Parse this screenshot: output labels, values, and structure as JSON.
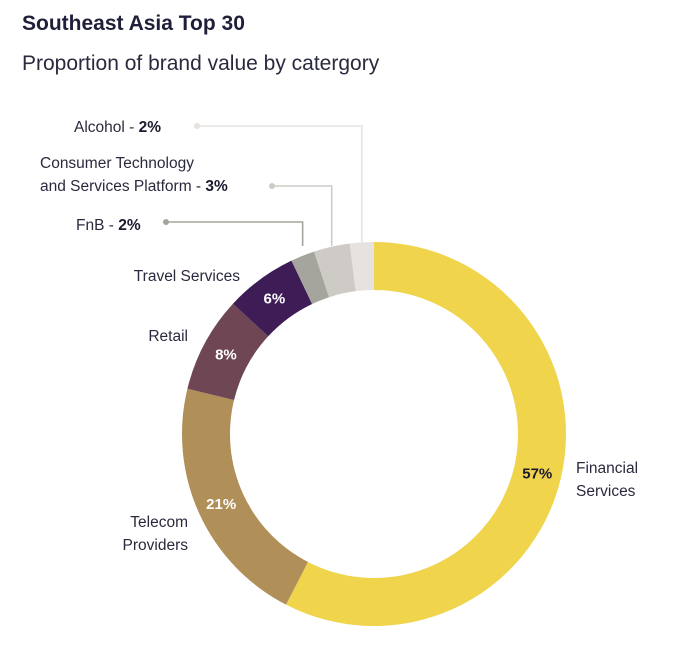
{
  "title": "Southeast Asia Top 30",
  "subtitle": "Proportion of brand value by catergory",
  "chart_data": {
    "type": "pie",
    "donut": true,
    "title": "Southeast Asia Top 30",
    "subtitle": "Proportion of brand value by catergory",
    "slices": [
      {
        "name": "Financial Services",
        "label_lines": [
          "Financial",
          "Services"
        ],
        "value": 57,
        "value_label": "57%",
        "color": "#f0d44c",
        "text_color": "#1a1a2e"
      },
      {
        "name": "Telecom Providers",
        "label_lines": [
          "Telecom",
          "Providers"
        ],
        "value": 21,
        "value_label": "21%",
        "color": "#b08f58",
        "text_color": "#ffffff"
      },
      {
        "name": "Retail",
        "label_lines": [
          "Retail"
        ],
        "value": 8,
        "value_label": "8%",
        "color": "#6e4654",
        "text_color": "#ffffff"
      },
      {
        "name": "Travel Services",
        "label_lines": [
          "Travel Services"
        ],
        "value": 6,
        "value_label": "6%",
        "color": "#3e1d57",
        "text_color": "#ffffff"
      },
      {
        "name": "FnB",
        "label_lines": [
          "FnB - "
        ],
        "value": 2,
        "value_label": "2%",
        "color": "#a6a59d"
      },
      {
        "name": "Consumer Technology and Services Platform",
        "label_lines": [
          "Consumer Technology",
          "and Services Platform - "
        ],
        "value": 3,
        "value_label": "3%",
        "color": "#cecbc6"
      },
      {
        "name": "Alcohol",
        "label_lines": [
          "Alcohol - "
        ],
        "value": 2,
        "value_label": "2%",
        "color": "#e6e2df"
      }
    ]
  }
}
